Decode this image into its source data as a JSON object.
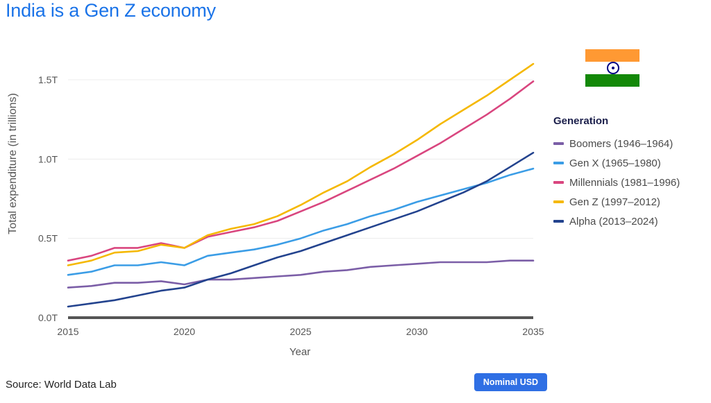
{
  "header": {
    "title": "India is a Gen Z economy"
  },
  "footer": {
    "source": "Source: World Data Lab",
    "badge": "Nominal USD"
  },
  "flag": {
    "name": "india-flag-icon",
    "colors": [
      "#FF9933",
      "#FFFFFF",
      "#138808"
    ],
    "wheel_color": "#000080"
  },
  "chart_data": {
    "type": "line",
    "title": "India is a Gen Z economy",
    "xlabel": "Year",
    "ylabel": "Total expenditure (in trillions)",
    "xlim": [
      2015,
      2035
    ],
    "ylim": [
      0,
      1.65
    ],
    "x_ticks": [
      2015,
      2020,
      2025,
      2030,
      2035
    ],
    "x_tick_labels": [
      "2015",
      "2020",
      "2025",
      "2030",
      "2035"
    ],
    "y_ticks": [
      0,
      0.5,
      1.0,
      1.5
    ],
    "y_tick_labels": [
      "0.0T",
      "0.5T",
      "1.0T",
      "1.5T"
    ],
    "grid": "horizontal",
    "legend_title": "Generation",
    "legend_position": "right",
    "x": [
      2015,
      2016,
      2017,
      2018,
      2019,
      2020,
      2021,
      2022,
      2023,
      2024,
      2025,
      2026,
      2027,
      2028,
      2029,
      2030,
      2031,
      2032,
      2033,
      2034,
      2035
    ],
    "series": [
      {
        "name": "Boomers (1946–1964)",
        "color": "#7b5ea7",
        "values": [
          0.19,
          0.2,
          0.22,
          0.22,
          0.23,
          0.21,
          0.24,
          0.24,
          0.25,
          0.26,
          0.27,
          0.29,
          0.3,
          0.32,
          0.33,
          0.34,
          0.35,
          0.35,
          0.35,
          0.36,
          0.36
        ]
      },
      {
        "name": "Gen X (1965–1980)",
        "color": "#3b9de6",
        "values": [
          0.27,
          0.29,
          0.33,
          0.33,
          0.35,
          0.33,
          0.39,
          0.41,
          0.43,
          0.46,
          0.5,
          0.55,
          0.59,
          0.64,
          0.68,
          0.73,
          0.77,
          0.81,
          0.85,
          0.9,
          0.94
        ]
      },
      {
        "name": "Millennials (1981–1996)",
        "color": "#d9467f",
        "values": [
          0.36,
          0.39,
          0.44,
          0.44,
          0.47,
          0.44,
          0.51,
          0.54,
          0.57,
          0.61,
          0.67,
          0.73,
          0.8,
          0.87,
          0.94,
          1.02,
          1.1,
          1.19,
          1.28,
          1.38,
          1.49
        ]
      },
      {
        "name": "Gen Z (1997–2012)",
        "color": "#f5b800",
        "values": [
          0.33,
          0.36,
          0.41,
          0.42,
          0.46,
          0.44,
          0.52,
          0.56,
          0.59,
          0.64,
          0.71,
          0.79,
          0.86,
          0.95,
          1.03,
          1.12,
          1.22,
          1.31,
          1.4,
          1.5,
          1.6
        ]
      },
      {
        "name": "Alpha (2013–2024)",
        "color": "#23438e",
        "values": [
          0.07,
          0.09,
          0.11,
          0.14,
          0.17,
          0.19,
          0.24,
          0.28,
          0.33,
          0.38,
          0.42,
          0.47,
          0.52,
          0.57,
          0.62,
          0.67,
          0.73,
          0.79,
          0.86,
          0.95,
          1.04
        ]
      }
    ]
  }
}
